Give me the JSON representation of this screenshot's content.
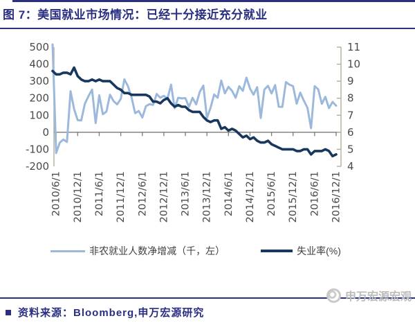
{
  "header": {
    "title": "图 7：美国就业市场情况：已经十分接近充分就业"
  },
  "footer": {
    "source": "资料来源：Bloomberg,申万宏源研究",
    "watermark": "申万宏源宏观"
  },
  "colors": {
    "navy_accent": "#2a2f82",
    "payrolls_line": "#9cb9dc",
    "unemployment_line": "#17375e",
    "axis_line": "#b2ad9b",
    "zero_axis": "#7a7a7a",
    "tick_label": "#4a4a4a",
    "watermark_gray": "#bcbcbc"
  },
  "chart_data": {
    "type": "line",
    "title": "美国就业市场情况：已经十分接近充分就业",
    "x_start": "2010/5/1",
    "x_frequency": "monthly",
    "x_tick_labels": [
      "2010/6/1",
      "2010/12/1",
      "2011/6/1",
      "2011/12/1",
      "2012/6/1",
      "2012/12/1",
      "2013/6/1",
      "2013/12/1",
      "2014/6/1",
      "2014/12/1",
      "2015/6/1",
      "2015/12/1",
      "2016/6/1",
      "2016/12/1"
    ],
    "x_tick_indices": [
      1,
      7,
      13,
      19,
      25,
      31,
      37,
      43,
      49,
      55,
      61,
      67,
      73,
      79
    ],
    "left_axis": {
      "min": -200,
      "max": 500,
      "tick_step": 100,
      "ticks": [
        500,
        400,
        300,
        200,
        100,
        0,
        -100,
        -200
      ]
    },
    "right_axis": {
      "min": 4,
      "max": 11,
      "tick_step": 1,
      "ticks": [
        11,
        10,
        9,
        8,
        7,
        6,
        5,
        4
      ]
    },
    "grid": "zero-line-only",
    "legend_position": "bottom",
    "series": [
      {
        "name": "非农就业人数净增减（千，左）",
        "axis": "left",
        "color": "#9cb9dc",
        "values": [
          516,
          -122,
          -61,
          -42,
          -57,
          241,
          137,
          71,
          70,
          168,
          212,
          251,
          54,
          217,
          106,
          122,
          221,
          183,
          164,
          196,
          311,
          271,
          205,
          112,
          125,
          87,
          153,
          165,
          161,
          225,
          203,
          214,
          197,
          280,
          141,
          203,
          199,
          201,
          149,
          202,
          164,
          237,
          274,
          84,
          144,
          222,
          203,
          304,
          229,
          267,
          243,
          203,
          271,
          243,
          321,
          256,
          221,
          265,
          84,
          251,
          273,
          228,
          277,
          150,
          149,
          295,
          280,
          271,
          168,
          233,
          186,
          144,
          24,
          271,
          252,
          167,
          208,
          142,
          178,
          156
        ]
      },
      {
        "name": "失业率(%)",
        "axis": "right",
        "color": "#17375e",
        "values": [
          9.6,
          9.4,
          9.4,
          9.5,
          9.5,
          9.4,
          9.8,
          9.3,
          9.1,
          9.0,
          9.0,
          9.1,
          9.0,
          9.1,
          9.0,
          9.0,
          9.0,
          8.8,
          8.6,
          8.5,
          8.3,
          8.3,
          8.2,
          8.2,
          8.2,
          8.2,
          8.2,
          8.1,
          7.8,
          7.8,
          7.7,
          7.9,
          8.0,
          7.7,
          7.5,
          7.6,
          7.5,
          7.5,
          7.3,
          7.2,
          7.2,
          7.2,
          6.9,
          6.7,
          6.6,
          6.7,
          6.7,
          6.2,
          6.3,
          6.1,
          6.2,
          6.1,
          5.9,
          5.7,
          5.8,
          5.6,
          5.7,
          5.5,
          5.4,
          5.4,
          5.5,
          5.3,
          5.2,
          5.1,
          5.0,
          5.0,
          5.0,
          5.0,
          4.9,
          4.9,
          5.0,
          5.0,
          4.7,
          4.9,
          4.9,
          4.9,
          5.0,
          4.9,
          4.6,
          4.7
        ]
      }
    ]
  }
}
